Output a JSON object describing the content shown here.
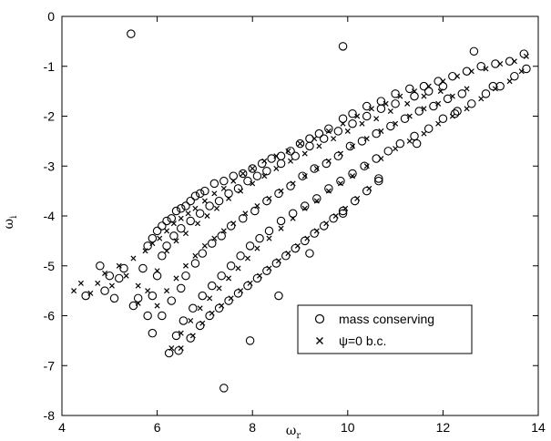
{
  "chart_data": {
    "type": "scatter",
    "title": "",
    "xlabel": "ω",
    "xlabel_sub": "r",
    "ylabel": "ω",
    "ylabel_sub": "i",
    "xlim": [
      4,
      14
    ],
    "ylim": [
      -8,
      0
    ],
    "xticks": [
      4,
      6,
      8,
      10,
      12,
      14
    ],
    "yticks": [
      0,
      -1,
      -2,
      -3,
      -4,
      -5,
      -6,
      -7,
      -8
    ],
    "grid": false,
    "legend_position": "bottom-right",
    "series": [
      {
        "name": "mass conserving",
        "marker": "circle",
        "points": [
          [
            4.5,
            -5.6
          ],
          [
            4.8,
            -5.0
          ],
          [
            4.9,
            -5.5
          ],
          [
            5.0,
            -5.2
          ],
          [
            5.1,
            -5.65
          ],
          [
            5.2,
            -5.25
          ],
          [
            5.3,
            -5.05
          ],
          [
            5.45,
            -0.35
          ],
          [
            5.5,
            -5.8
          ],
          [
            5.6,
            -5.65
          ],
          [
            5.7,
            -5.05
          ],
          [
            5.8,
            -4.6
          ],
          [
            5.9,
            -4.45
          ],
          [
            6.0,
            -4.3
          ],
          [
            6.1,
            -4.2
          ],
          [
            6.2,
            -4.1
          ],
          [
            6.3,
            -4.05
          ],
          [
            6.4,
            -3.9
          ],
          [
            6.5,
            -3.85
          ],
          [
            6.6,
            -3.8
          ],
          [
            6.7,
            -3.7
          ],
          [
            6.8,
            -3.6
          ],
          [
            6.9,
            -3.55
          ],
          [
            7.0,
            -3.5
          ],
          [
            7.2,
            -3.35
          ],
          [
            7.4,
            -3.3
          ],
          [
            7.6,
            -3.2
          ],
          [
            7.8,
            -3.15
          ],
          [
            8.0,
            -3.05
          ],
          [
            8.2,
            -2.95
          ],
          [
            8.4,
            -2.85
          ],
          [
            8.6,
            -2.8
          ],
          [
            8.8,
            -2.7
          ],
          [
            9.0,
            -2.55
          ],
          [
            9.2,
            -2.45
          ],
          [
            9.4,
            -2.35
          ],
          [
            9.6,
            -2.25
          ],
          [
            9.9,
            -2.05
          ],
          [
            10.1,
            -1.95
          ],
          [
            10.4,
            -1.8
          ],
          [
            10.7,
            -1.7
          ],
          [
            11.0,
            -1.55
          ],
          [
            11.3,
            -1.45
          ],
          [
            11.6,
            -1.4
          ],
          [
            11.9,
            -1.3
          ],
          [
            12.2,
            -1.2
          ],
          [
            12.5,
            -1.1
          ],
          [
            12.8,
            -1.0
          ],
          [
            13.1,
            -0.95
          ],
          [
            13.4,
            -0.9
          ],
          [
            13.7,
            -0.75
          ],
          [
            5.8,
            -6.0
          ],
          [
            5.9,
            -5.6
          ],
          [
            6.0,
            -5.2
          ],
          [
            6.1,
            -4.8
          ],
          [
            6.2,
            -4.6
          ],
          [
            6.35,
            -4.4
          ],
          [
            6.5,
            -4.25
          ],
          [
            6.7,
            -4.1
          ],
          [
            6.9,
            -3.95
          ],
          [
            7.1,
            -3.8
          ],
          [
            7.3,
            -3.7
          ],
          [
            7.5,
            -3.55
          ],
          [
            7.7,
            -3.45
          ],
          [
            7.9,
            -3.3
          ],
          [
            8.1,
            -3.2
          ],
          [
            8.3,
            -3.1
          ],
          [
            8.6,
            -2.95
          ],
          [
            8.9,
            -2.8
          ],
          [
            9.2,
            -2.6
          ],
          [
            9.5,
            -2.45
          ],
          [
            9.8,
            -2.3
          ],
          [
            10.1,
            -2.15
          ],
          [
            10.4,
            -2.0
          ],
          [
            10.7,
            -1.85
          ],
          [
            11.0,
            -1.75
          ],
          [
            11.4,
            -1.6
          ],
          [
            11.7,
            -1.5
          ],
          [
            12.0,
            -1.4
          ],
          [
            5.9,
            -6.35
          ],
          [
            6.1,
            -6.0
          ],
          [
            6.3,
            -5.7
          ],
          [
            6.5,
            -5.45
          ],
          [
            6.6,
            -5.2
          ],
          [
            6.8,
            -4.95
          ],
          [
            6.95,
            -4.75
          ],
          [
            7.15,
            -4.55
          ],
          [
            7.35,
            -4.4
          ],
          [
            7.55,
            -4.2
          ],
          [
            7.8,
            -4.05
          ],
          [
            8.05,
            -3.9
          ],
          [
            8.3,
            -3.7
          ],
          [
            8.55,
            -3.55
          ],
          [
            8.8,
            -3.4
          ],
          [
            9.05,
            -3.2
          ],
          [
            9.3,
            -3.05
          ],
          [
            9.55,
            -2.95
          ],
          [
            9.8,
            -2.8
          ],
          [
            10.05,
            -2.6
          ],
          [
            10.3,
            -2.5
          ],
          [
            10.6,
            -2.35
          ],
          [
            10.9,
            -2.2
          ],
          [
            11.2,
            -2.05
          ],
          [
            11.5,
            -1.9
          ],
          [
            11.8,
            -1.8
          ],
          [
            12.1,
            -1.65
          ],
          [
            12.4,
            -1.55
          ],
          [
            6.25,
            -6.75
          ],
          [
            6.4,
            -6.4
          ],
          [
            6.55,
            -6.1
          ],
          [
            6.75,
            -5.85
          ],
          [
            6.95,
            -5.6
          ],
          [
            7.15,
            -5.4
          ],
          [
            7.35,
            -5.2
          ],
          [
            7.55,
            -5.0
          ],
          [
            7.75,
            -4.8
          ],
          [
            7.95,
            -4.6
          ],
          [
            8.15,
            -4.45
          ],
          [
            8.35,
            -4.3
          ],
          [
            8.6,
            -4.1
          ],
          [
            8.85,
            -3.95
          ],
          [
            9.1,
            -3.8
          ],
          [
            9.35,
            -3.65
          ],
          [
            9.6,
            -3.45
          ],
          [
            9.85,
            -3.3
          ],
          [
            10.1,
            -3.15
          ],
          [
            10.35,
            -3.0
          ],
          [
            10.6,
            -2.85
          ],
          [
            10.85,
            -2.7
          ],
          [
            11.1,
            -2.55
          ],
          [
            11.4,
            -2.4
          ],
          [
            11.7,
            -2.25
          ],
          [
            12.0,
            -2.05
          ],
          [
            12.3,
            -1.9
          ],
          [
            12.6,
            -1.75
          ],
          [
            12.9,
            -1.55
          ],
          [
            13.2,
            -1.4
          ],
          [
            13.5,
            -1.2
          ],
          [
            13.75,
            -1.05
          ],
          [
            6.45,
            -6.7
          ],
          [
            6.7,
            -6.45
          ],
          [
            6.9,
            -6.2
          ],
          [
            7.1,
            -6.0
          ],
          [
            7.3,
            -5.85
          ],
          [
            7.5,
            -5.7
          ],
          [
            7.7,
            -5.55
          ],
          [
            7.9,
            -5.4
          ],
          [
            8.1,
            -5.25
          ],
          [
            8.3,
            -5.1
          ],
          [
            8.5,
            -4.95
          ],
          [
            8.7,
            -4.8
          ],
          [
            8.9,
            -4.65
          ],
          [
            9.1,
            -4.5
          ],
          [
            9.3,
            -4.35
          ],
          [
            9.5,
            -4.2
          ],
          [
            9.7,
            -4.05
          ],
          [
            9.9,
            -3.9
          ],
          [
            10.15,
            -3.7
          ],
          [
            10.4,
            -3.5
          ],
          [
            10.65,
            -3.3
          ],
          [
            7.4,
            -7.45
          ],
          [
            7.95,
            -6.5
          ],
          [
            8.55,
            -5.6
          ],
          [
            9.2,
            -4.75
          ],
          [
            9.9,
            -3.95
          ],
          [
            10.65,
            -3.25
          ],
          [
            11.45,
            -2.55
          ],
          [
            12.25,
            -1.95
          ],
          [
            13.05,
            -1.4
          ],
          [
            9.9,
            -0.6
          ],
          [
            12.65,
            -0.7
          ]
        ]
      },
      {
        "name": "ψ=0 b.c.",
        "marker": "cross",
        "points": [
          [
            4.25,
            -5.5
          ],
          [
            4.4,
            -5.35
          ],
          [
            4.6,
            -5.55
          ],
          [
            4.75,
            -5.35
          ],
          [
            4.9,
            -5.15
          ],
          [
            5.05,
            -5.4
          ],
          [
            5.2,
            -5.0
          ],
          [
            5.35,
            -5.2
          ],
          [
            5.5,
            -4.85
          ],
          [
            5.6,
            -5.4
          ],
          [
            5.75,
            -4.7
          ],
          [
            5.9,
            -4.55
          ],
          [
            6.05,
            -4.45
          ],
          [
            6.2,
            -4.3
          ],
          [
            6.35,
            -4.15
          ],
          [
            6.5,
            -4.05
          ],
          [
            6.65,
            -3.95
          ],
          [
            6.8,
            -3.85
          ],
          [
            7.0,
            -3.7
          ],
          [
            7.2,
            -3.55
          ],
          [
            7.4,
            -3.45
          ],
          [
            7.6,
            -3.3
          ],
          [
            7.8,
            -3.15
          ],
          [
            8.0,
            -3.05
          ],
          [
            8.25,
            -2.9
          ],
          [
            8.5,
            -2.8
          ],
          [
            8.75,
            -2.7
          ],
          [
            9.0,
            -2.55
          ],
          [
            9.3,
            -2.45
          ],
          [
            9.6,
            -2.3
          ],
          [
            9.9,
            -2.15
          ],
          [
            10.2,
            -2.0
          ],
          [
            10.5,
            -1.85
          ],
          [
            10.8,
            -1.75
          ],
          [
            11.1,
            -1.6
          ],
          [
            11.4,
            -1.5
          ],
          [
            11.7,
            -1.4
          ],
          [
            12.0,
            -1.3
          ],
          [
            12.3,
            -1.2
          ],
          [
            12.6,
            -1.1
          ],
          [
            12.9,
            -1.05
          ],
          [
            13.2,
            -0.95
          ],
          [
            13.5,
            -0.9
          ],
          [
            13.75,
            -0.8
          ],
          [
            5.6,
            -5.75
          ],
          [
            5.8,
            -5.5
          ],
          [
            6.0,
            -5.1
          ],
          [
            6.2,
            -4.7
          ],
          [
            6.4,
            -4.5
          ],
          [
            6.6,
            -4.35
          ],
          [
            6.85,
            -4.15
          ],
          [
            7.05,
            -4.0
          ],
          [
            7.25,
            -3.85
          ],
          [
            7.5,
            -3.65
          ],
          [
            7.75,
            -3.5
          ],
          [
            8.0,
            -3.35
          ],
          [
            8.25,
            -3.2
          ],
          [
            8.5,
            -3.05
          ],
          [
            8.8,
            -2.9
          ],
          [
            9.1,
            -2.75
          ],
          [
            9.4,
            -2.6
          ],
          [
            9.7,
            -2.45
          ],
          [
            10.0,
            -2.3
          ],
          [
            10.3,
            -2.15
          ],
          [
            10.6,
            -2.05
          ],
          [
            10.9,
            -1.9
          ],
          [
            11.25,
            -1.75
          ],
          [
            11.6,
            -1.6
          ],
          [
            11.95,
            -1.5
          ],
          [
            6.0,
            -5.8
          ],
          [
            6.2,
            -5.5
          ],
          [
            6.4,
            -5.25
          ],
          [
            6.6,
            -5.0
          ],
          [
            6.8,
            -4.8
          ],
          [
            7.0,
            -4.6
          ],
          [
            7.2,
            -4.45
          ],
          [
            7.4,
            -4.3
          ],
          [
            7.6,
            -4.15
          ],
          [
            7.85,
            -3.95
          ],
          [
            8.1,
            -3.8
          ],
          [
            8.35,
            -3.65
          ],
          [
            8.6,
            -3.5
          ],
          [
            8.85,
            -3.35
          ],
          [
            9.1,
            -3.2
          ],
          [
            9.35,
            -3.05
          ],
          [
            9.6,
            -2.9
          ],
          [
            9.85,
            -2.75
          ],
          [
            10.1,
            -2.6
          ],
          [
            10.4,
            -2.45
          ],
          [
            10.7,
            -2.3
          ],
          [
            11.0,
            -2.15
          ],
          [
            11.3,
            -2.0
          ],
          [
            11.6,
            -1.85
          ],
          [
            11.9,
            -1.75
          ],
          [
            12.2,
            -1.6
          ],
          [
            12.5,
            -1.45
          ],
          [
            6.3,
            -6.65
          ],
          [
            6.5,
            -6.35
          ],
          [
            6.7,
            -6.1
          ],
          [
            6.9,
            -5.85
          ],
          [
            7.1,
            -5.65
          ],
          [
            7.3,
            -5.45
          ],
          [
            7.5,
            -5.25
          ],
          [
            7.7,
            -5.05
          ],
          [
            7.9,
            -4.85
          ],
          [
            8.1,
            -4.65
          ],
          [
            8.35,
            -4.45
          ],
          [
            8.6,
            -4.25
          ],
          [
            8.85,
            -4.05
          ],
          [
            9.1,
            -3.85
          ],
          [
            9.35,
            -3.7
          ],
          [
            9.6,
            -3.5
          ],
          [
            9.85,
            -3.35
          ],
          [
            10.1,
            -3.2
          ],
          [
            10.4,
            -3.0
          ],
          [
            10.7,
            -2.85
          ],
          [
            11.0,
            -2.65
          ],
          [
            11.3,
            -2.5
          ],
          [
            11.6,
            -2.35
          ],
          [
            11.9,
            -2.15
          ],
          [
            12.2,
            -2.0
          ],
          [
            12.5,
            -1.85
          ],
          [
            12.8,
            -1.65
          ],
          [
            13.1,
            -1.45
          ],
          [
            13.4,
            -1.3
          ],
          [
            13.65,
            -1.1
          ],
          [
            6.5,
            -6.65
          ],
          [
            6.75,
            -6.4
          ],
          [
            6.95,
            -6.15
          ],
          [
            7.15,
            -5.95
          ],
          [
            7.35,
            -5.8
          ],
          [
            7.55,
            -5.65
          ],
          [
            7.75,
            -5.5
          ],
          [
            7.95,
            -5.35
          ],
          [
            8.15,
            -5.2
          ],
          [
            8.35,
            -5.05
          ],
          [
            8.55,
            -4.9
          ],
          [
            8.75,
            -4.75
          ],
          [
            8.95,
            -4.6
          ],
          [
            9.15,
            -4.45
          ],
          [
            9.35,
            -4.3
          ],
          [
            9.55,
            -4.15
          ],
          [
            9.75,
            -4.0
          ],
          [
            9.95,
            -3.85
          ],
          [
            10.2,
            -3.65
          ],
          [
            10.45,
            -3.45
          ]
        ]
      }
    ]
  }
}
